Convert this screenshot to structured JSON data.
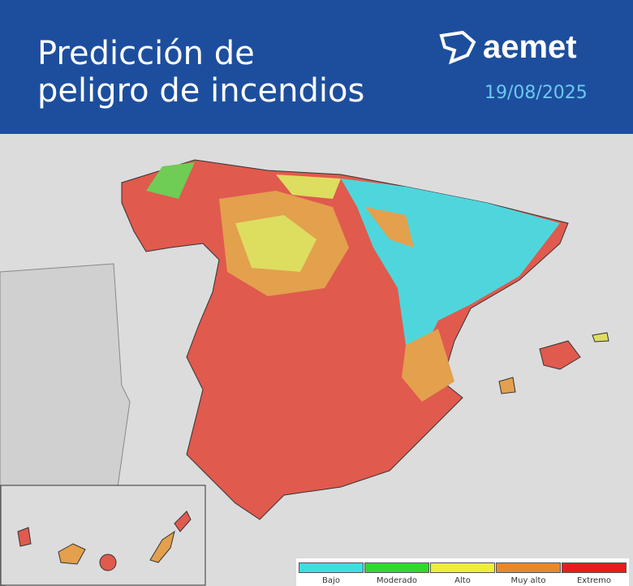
{
  "header": {
    "title": [
      "Predicción de",
      "peligro de incendios"
    ],
    "logo": "aemet",
    "date": "19/08/2025"
  },
  "legend": {
    "items": [
      {
        "label": "Bajo",
        "color": "#3fdde0"
      },
      {
        "label": "Moderado",
        "color": "#33d633"
      },
      {
        "label": "Alto",
        "color": "#eded3a"
      },
      {
        "label": "Muy alto",
        "color": "#e6892e"
      },
      {
        "label": "Extremo",
        "color": "#e81c1c"
      }
    ]
  }
}
